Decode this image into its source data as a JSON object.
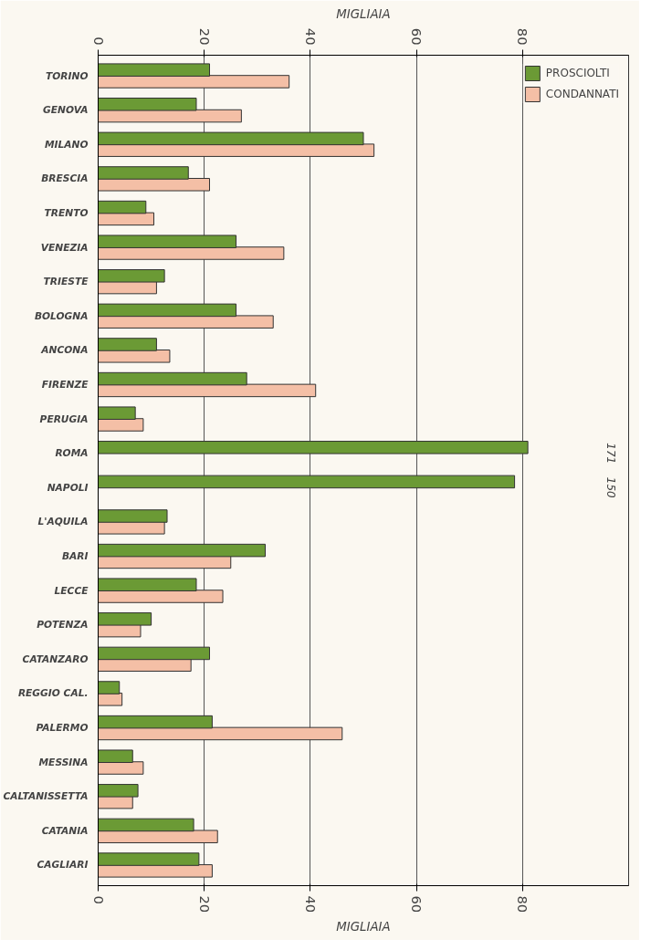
{
  "chart_data": {
    "type": "bar",
    "orientation": "horizontal",
    "categories": [
      "TORINO",
      "GENOVA",
      "MILANO",
      "BRESCIA",
      "TRENTO",
      "VENEZIA",
      "TRIESTE",
      "BOLOGNA",
      "ANCONA",
      "FIRENZE",
      "PERUGIA",
      "ROMA",
      "NAPOLI",
      "L'AQUILA",
      "BARI",
      "LECCE",
      "POTENZA",
      "CATANZARO",
      "REGGIO CAL.",
      "PALERMO",
      "MESSINA",
      "CALTANISSETTA",
      "CATANIA",
      "CAGLIARI"
    ],
    "series": [
      {
        "name": "CONDANNATI",
        "color": "#f4bfa6",
        "values": [
          36,
          27,
          52,
          21,
          10.5,
          35,
          11,
          33,
          13.5,
          41,
          8.5,
          null,
          null,
          12.5,
          25,
          23.5,
          8,
          17.5,
          4.5,
          46,
          8.5,
          6.5,
          22.5,
          21.5
        ]
      },
      {
        "name": "PROSCIOLTI",
        "color": "#6b9a35",
        "values": [
          21,
          18.5,
          50,
          17,
          9,
          26,
          12.5,
          26,
          11,
          28,
          7,
          81,
          78.5,
          13,
          31.5,
          18.5,
          10,
          21,
          4,
          21.5,
          6.5,
          7.5,
          18,
          19
        ]
      }
    ],
    "xlim": [
      0,
      100
    ],
    "xticks": [
      0,
      20,
      40,
      60,
      80
    ],
    "xlabel": "MIGLIAIA",
    "x2lim": [
      0,
      100
    ],
    "x2ticks": [
      0,
      20,
      40,
      60,
      80
    ],
    "x2label": "MIGLIAIA",
    "annotations": [
      "171",
      "150"
    ],
    "grid": "x",
    "legend": "top right"
  }
}
